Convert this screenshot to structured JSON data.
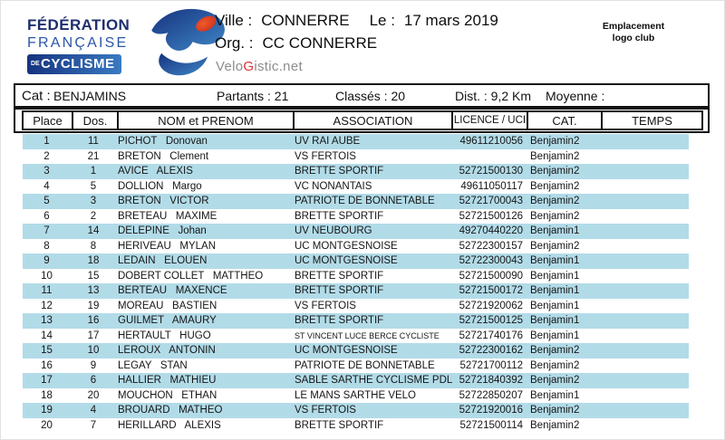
{
  "logo": {
    "line1": "FÉDÉRATION",
    "line2": "FRANÇAISE",
    "de": "DE",
    "line3": "CYCLISME"
  },
  "header": {
    "ville_label": "Ville :",
    "ville": "CONNERRE",
    "le_label": "Le :",
    "date": "17 mars 2019",
    "org_label": "Org. :",
    "org": "CC CONNERRE",
    "velogistic_pre": "Velo",
    "velogistic_g": "G",
    "velogistic_post": "istic.net",
    "emplacement_line1": "Emplacement",
    "emplacement_line2": "logo club"
  },
  "meta": {
    "cat_label": "Cat :",
    "cat_value": "BENJAMINS",
    "partants": "Partants : 21",
    "classes": "Classés : 20",
    "dist": "Dist. : 9,2 Km",
    "moyenne": "Moyenne :"
  },
  "colors": {
    "stripe_blue": "#B2DBE8",
    "logo_navy": "#1E2F6E",
    "logo_blue": "#2B56A7",
    "logo_red": "#DD3D17",
    "velogistic_gray": "#8D8D8D",
    "velogistic_red": "#E03030"
  },
  "table": {
    "headers": [
      "Place",
      "Dos.",
      "NOM et PRENOM",
      "ASSOCIATION",
      "LICENCE / UCI",
      "CAT.",
      "TEMPS"
    ],
    "rows": [
      [
        "1",
        "11",
        "PICHOT   Donovan",
        "UV RAI AUBE",
        "49611210056",
        "Benjamin2",
        ""
      ],
      [
        "2",
        "21",
        "BRETON   Clement",
        "VS FERTOIS",
        "",
        "Benjamin2",
        ""
      ],
      [
        "3",
        "1",
        "AVICE   ALEXIS",
        "BRETTE SPORTIF",
        "52721500130",
        "Benjamin2",
        ""
      ],
      [
        "4",
        "5",
        "DOLLION   Margo",
        "VC NONANTAIS",
        "49611050117",
        "Benjamin2",
        ""
      ],
      [
        "5",
        "3",
        "BRETON   VICTOR",
        "PATRIOTE DE BONNETABLE",
        "52721700043",
        "Benjamin2",
        ""
      ],
      [
        "6",
        "2",
        "BRETEAU   MAXIME",
        "BRETTE SPORTIF",
        "52721500126",
        "Benjamin2",
        ""
      ],
      [
        "7",
        "14",
        "DELEPINE   Johan",
        "UV NEUBOURG",
        "49270440220",
        "Benjamin1",
        ""
      ],
      [
        "8",
        "8",
        "HERIVEAU   MYLAN",
        "UC MONTGESNOISE",
        "52722300157",
        "Benjamin2",
        ""
      ],
      [
        "9",
        "18",
        "LEDAIN   ELOUEN",
        "UC MONTGESNOISE",
        "52722300043",
        "Benjamin1",
        ""
      ],
      [
        "10",
        "15",
        "DOBERT COLLET   MATTHEO",
        "BRETTE SPORTIF",
        "52721500090",
        "Benjamin1",
        ""
      ],
      [
        "11",
        "13",
        "BERTEAU   MAXENCE",
        "BRETTE SPORTIF",
        "52721500172",
        "Benjamin1",
        ""
      ],
      [
        "12",
        "19",
        "MOREAU   BASTIEN",
        "VS FERTOIS",
        "52721920062",
        "Benjamin1",
        ""
      ],
      [
        "13",
        "16",
        "GUILMET   AMAURY",
        "BRETTE SPORTIF",
        "52721500125",
        "Benjamin1",
        ""
      ],
      [
        "14",
        "17",
        "HERTAULT   HUGO",
        "ST VINCENT LUCE BERCE CYCLISTE",
        "52721740176",
        "Benjamin1",
        ""
      ],
      [
        "15",
        "10",
        "LEROUX   ANTONIN",
        "UC MONTGESNOISE",
        "52722300162",
        "Benjamin2",
        ""
      ],
      [
        "16",
        "9",
        "LEGAY   STAN",
        "PATRIOTE DE BONNETABLE",
        "52721700112",
        "Benjamin2",
        ""
      ],
      [
        "17",
        "6",
        "HALLIER   MATHIEU",
        "SABLE SARTHE CYCLISME PDL",
        "52721840392",
        "Benjamin2",
        ""
      ],
      [
        "18",
        "20",
        "MOUCHON   ETHAN",
        "LE MANS SARTHE VELO",
        "52722850207",
        "Benjamin1",
        ""
      ],
      [
        "19",
        "4",
        "BROUARD   MATHEO",
        "VS FERTOIS",
        "52721920016",
        "Benjamin2",
        ""
      ],
      [
        "20",
        "7",
        "HERILLARD   ALEXIS",
        "BRETTE SPORTIF",
        "52721500114",
        "Benjamin2",
        ""
      ]
    ]
  }
}
